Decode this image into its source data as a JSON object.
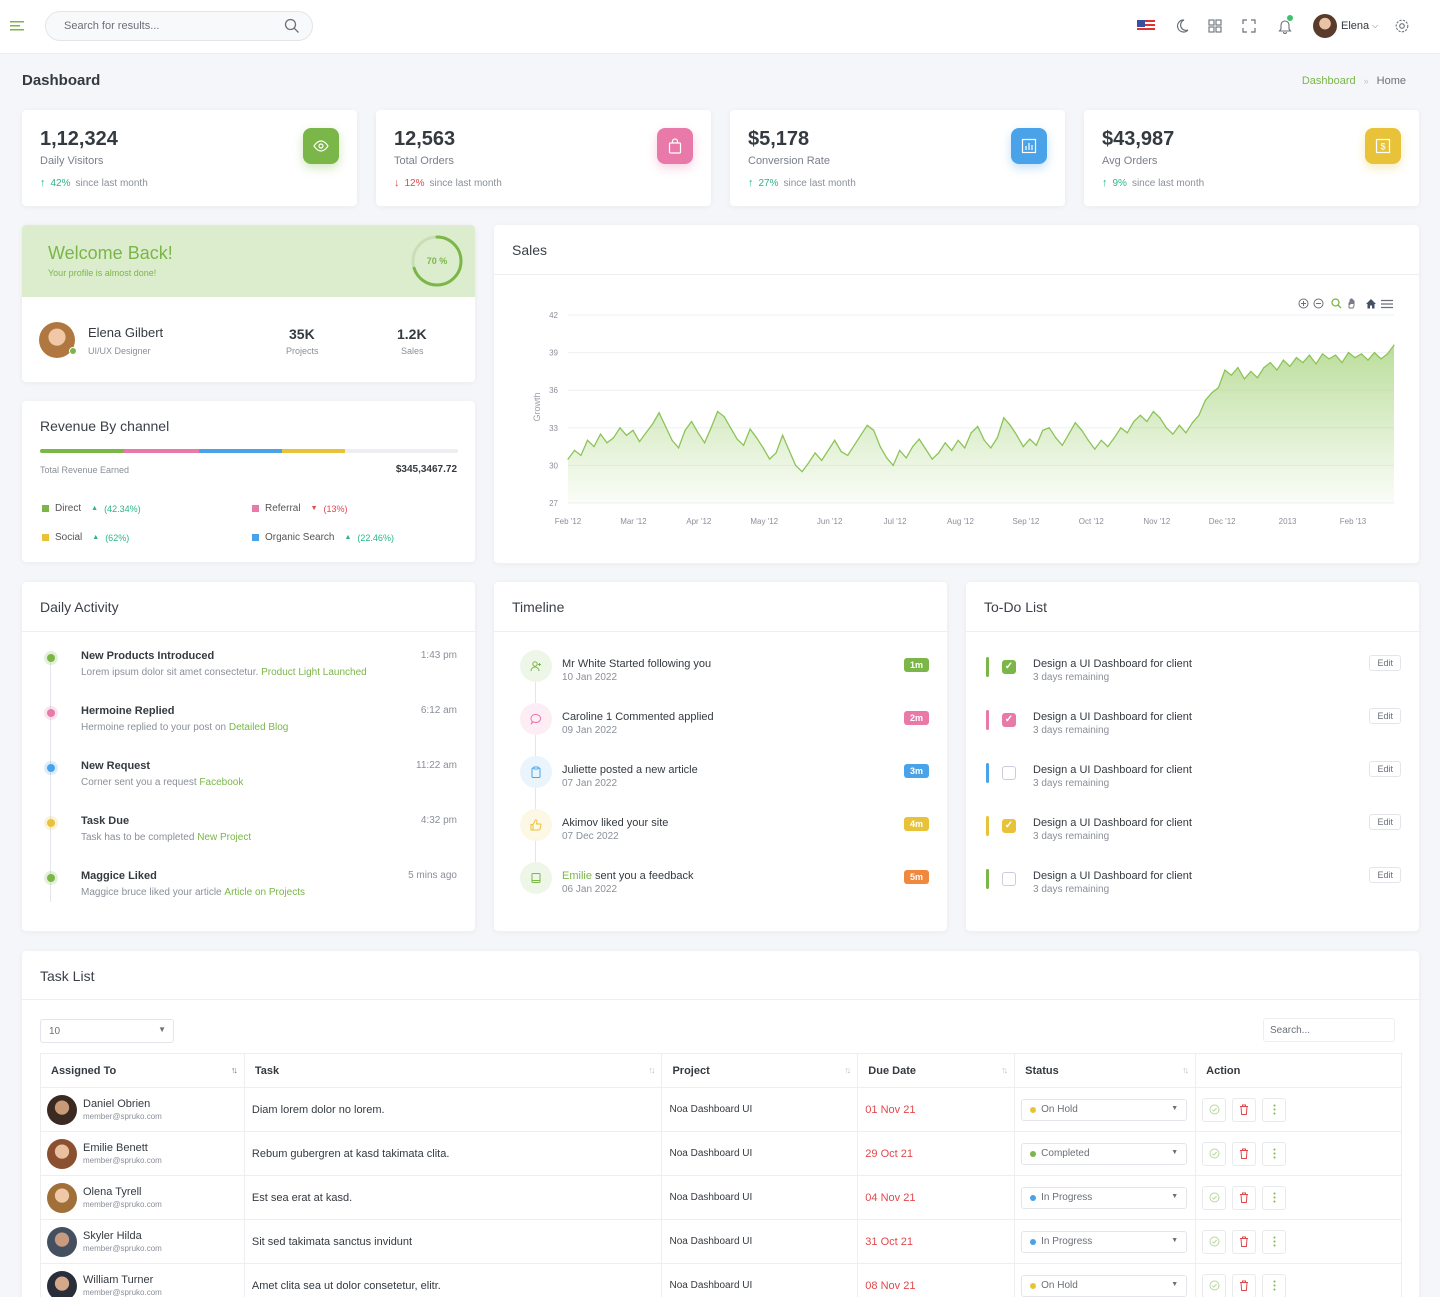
{
  "topbar": {
    "search_placeholder": "Search for results...",
    "user_name": "Elena"
  },
  "page": {
    "title": "Dashboard",
    "breadcrumb": [
      "Dashboard",
      "Home"
    ]
  },
  "stats": [
    {
      "value": "1,12,324",
      "label": "Daily Visitors",
      "change": "42%",
      "direction": "up",
      "note": "since last month",
      "color": "#7ab648",
      "icon": "eye-icon"
    },
    {
      "value": "12,563",
      "label": "Total Orders",
      "change": "12%",
      "direction": "down",
      "note": "since last month",
      "color": "#e879a9",
      "icon": "shopping-bag-icon"
    },
    {
      "value": "$5,178",
      "label": "Conversion Rate",
      "change": "27%",
      "direction": "up",
      "note": "since last month",
      "color": "#4aa3e8",
      "icon": "bar-chart-icon"
    },
    {
      "value": "$43,987",
      "label": "Avg Orders",
      "change": "9%",
      "direction": "up",
      "note": "since last month",
      "color": "#e8c33a",
      "icon": "dollar-doc-icon"
    }
  ],
  "welcome": {
    "title": "Welcome Back!",
    "subtitle": "Your profile is almost done!",
    "progress_label": "70 %",
    "progress": 0.7
  },
  "profile": {
    "name": "Elena Gilbert",
    "role": "UI/UX Designer",
    "projects_value": "35K",
    "projects_label": "Projects",
    "sales_value": "1.2K",
    "sales_label": "Sales"
  },
  "revenue": {
    "title": "Revenue By channel",
    "total_label": "Total Revenue Earned",
    "total_value": "$345,3467.72",
    "bar_shares": [
      0.2,
      0.18,
      0.2,
      0.15,
      0.27
    ],
    "bar_colors": [
      "#7ab648",
      "#e879a9",
      "#4aa3e8",
      "#e8c33a",
      "#eceef2"
    ],
    "channels": [
      {
        "name": "Direct",
        "change": "(42.34%)",
        "direction": "up",
        "color": "#7ab648"
      },
      {
        "name": "Referral",
        "change": "(13%)",
        "direction": "down",
        "color": "#e879a9"
      },
      {
        "name": "Social",
        "change": "(62%)",
        "direction": "up",
        "color": "#e8c33a"
      },
      {
        "name": "Organic Search",
        "change": "(22.46%)",
        "direction": "up",
        "color": "#4aa3e8"
      }
    ]
  },
  "sales": {
    "title": "Sales"
  },
  "chart_data": {
    "type": "area",
    "title": "Sales",
    "ylabel": "Growth",
    "xlabel": "",
    "ylim": [
      27,
      42
    ],
    "yticks": [
      27,
      30,
      33,
      36,
      39,
      42
    ],
    "xticks": [
      "Feb '12",
      "Mar '12",
      "Apr '12",
      "May '12",
      "Jun '12",
      "Jul '12",
      "Aug '12",
      "Sep '12",
      "Oct '12",
      "Nov '12",
      "Dec '12",
      "2013",
      "Feb '13"
    ],
    "series": [
      {
        "values": [
          30.5,
          31.2,
          30.8,
          32.0,
          31.5,
          32.5,
          31.8,
          32.2,
          33.0,
          32.4,
          32.8,
          31.9,
          32.6,
          33.3,
          34.2,
          33.1,
          32.0,
          31.4,
          32.8,
          33.5,
          32.6,
          31.8,
          33.0,
          34.3,
          33.9,
          33.0,
          32.1,
          31.6,
          32.9,
          32.2,
          31.4,
          30.5,
          31.0,
          32.4,
          31.2,
          30.0,
          29.5,
          30.2,
          31.0,
          30.4,
          31.2,
          32.0,
          31.1,
          30.8,
          31.6,
          32.4,
          33.2,
          32.8,
          31.5,
          30.6,
          30.0,
          31.2,
          30.6,
          31.5,
          32.1,
          31.3,
          30.5,
          31.0,
          31.8,
          31.2,
          32.0,
          31.4,
          32.6,
          33.1,
          32.0,
          31.4,
          32.2,
          33.8,
          33.2,
          32.4,
          31.5,
          32.1,
          31.6,
          32.8,
          33.0,
          32.2,
          31.6,
          32.5,
          33.4,
          32.8,
          32.0,
          31.3,
          32.0,
          31.5,
          32.2,
          33.0,
          32.6,
          33.5,
          34.0,
          33.5,
          34.3,
          33.8,
          33.0,
          32.5,
          33.2,
          32.6,
          33.4,
          34.0,
          35.2,
          35.8,
          36.2,
          37.6,
          37.2,
          37.8,
          36.9,
          37.5,
          37.0,
          37.8,
          38.2,
          37.6,
          38.4,
          37.9,
          38.6,
          38.2,
          38.8,
          38.1,
          38.9,
          38.5,
          38.8,
          38.2,
          39.0,
          38.6,
          38.9,
          38.4,
          39.0,
          38.5,
          38.9,
          39.6
        ]
      }
    ]
  },
  "activity": {
    "title": "Daily Activity",
    "items": [
      {
        "title": "New Products Introduced",
        "desc": "Lorem ipsum dolor sit amet consectetur.",
        "link": "Product Light Launched",
        "time": "1:43 pm",
        "color": "#7ab648"
      },
      {
        "title": "Hermoine Replied",
        "desc": "Hermoine replied to your post on",
        "link": "Detailed Blog",
        "time": "6:12 am",
        "color": "#e879a9"
      },
      {
        "title": "New Request",
        "desc": "Corner sent you a request",
        "link": "Facebook",
        "time": "11:22 am",
        "color": "#4aa3e8"
      },
      {
        "title": "Task Due",
        "desc": "Task has to be completed",
        "link": "New Project",
        "time": "4:32 pm",
        "color": "#e8c33a"
      },
      {
        "title": "Maggice Liked",
        "desc": "Maggice bruce liked your article",
        "link": "Article on Projects",
        "time": "5 mins ago",
        "color": "#7ab648"
      }
    ]
  },
  "timeline": {
    "title": "Timeline",
    "items": [
      {
        "prefix": "",
        "title": "Mr White Started following you",
        "date": "10 Jan 2022",
        "badge": "1m",
        "color": "#7ab648",
        "bg": "#eef6e8",
        "icon": "user-plus-icon"
      },
      {
        "prefix": "",
        "title": "Caroline 1 Commented applied",
        "date": "09 Jan 2022",
        "badge": "2m",
        "color": "#e879a9",
        "bg": "#fdeef5",
        "icon": "comment-icon"
      },
      {
        "prefix": "",
        "title": "Juliette posted a new article",
        "date": "07 Jan 2022",
        "badge": "3m",
        "color": "#4aa3e8",
        "bg": "#eaf4fd",
        "icon": "clipboard-icon"
      },
      {
        "prefix": "",
        "title": "Akimov liked your site",
        "date": "07 Dec 2022",
        "badge": "4m",
        "color": "#e8c33a",
        "bg": "#fdf7e6",
        "icon": "thumbs-up-icon"
      },
      {
        "prefix": "Emilie",
        "title": " sent you a feedback",
        "date": "06 Jan 2022",
        "badge": "5m",
        "color": "#f0883e",
        "bg": "#eef6e8",
        "icon": "book-icon"
      }
    ]
  },
  "todo": {
    "title": "To-Do List",
    "edit_label": "Edit",
    "items": [
      {
        "title": "Design a UI Dashboard for client",
        "sub": "3 days remaining",
        "color": "#7ab648",
        "checked": true
      },
      {
        "title": "Design a UI Dashboard for client",
        "sub": "3 days remaining",
        "color": "#e879a9",
        "checked": true
      },
      {
        "title": "Design a UI Dashboard for client",
        "sub": "3 days remaining",
        "color": "#4aa3e8",
        "checked": false
      },
      {
        "title": "Design a UI Dashboard for client",
        "sub": "3 days remaining",
        "color": "#e8c33a",
        "checked": true
      },
      {
        "title": "Design a UI Dashboard for client",
        "sub": "3 days remaining",
        "color": "#7ab648",
        "checked": false
      }
    ]
  },
  "tasks": {
    "title": "Task List",
    "page_size": "10",
    "search_placeholder": "Search...",
    "columns": [
      "Assigned To",
      "Task",
      "Project",
      "Due Date",
      "Status",
      "Action"
    ],
    "rows": [
      {
        "name": "Daniel Obrien",
        "email": "member@spruko.com",
        "task": "Diam lorem dolor no lorem.",
        "project": "Noa Dashboard UI",
        "due": "01 Nov 21",
        "status": "On Hold",
        "status_color": "#e8c33a"
      },
      {
        "name": "Emilie Benett",
        "email": "member@spruko.com",
        "task": "Rebum gubergren at kasd takimata clita.",
        "project": "Noa Dashboard UI",
        "due": "29 Oct 21",
        "status": "Completed",
        "status_color": "#7ab648"
      },
      {
        "name": "Olena Tyrell",
        "email": "member@spruko.com",
        "task": "Est sea erat at kasd.",
        "project": "Noa Dashboard UI",
        "due": "04 Nov 21",
        "status": "In Progress",
        "status_color": "#4aa3e8"
      },
      {
        "name": "Skyler Hilda",
        "email": "member@spruko.com",
        "task": "Sit sed takimata sanctus invidunt",
        "project": "Noa Dashboard UI",
        "due": "31 Oct 21",
        "status": "In Progress",
        "status_color": "#4aa3e8"
      },
      {
        "name": "William Turner",
        "email": "member@spruko.com",
        "task": "Amet clita sea ut dolor consetetur, elitr.",
        "project": "Noa Dashboard UI",
        "due": "08 Nov 21",
        "status": "On Hold",
        "status_color": "#e8c33a"
      }
    ]
  }
}
